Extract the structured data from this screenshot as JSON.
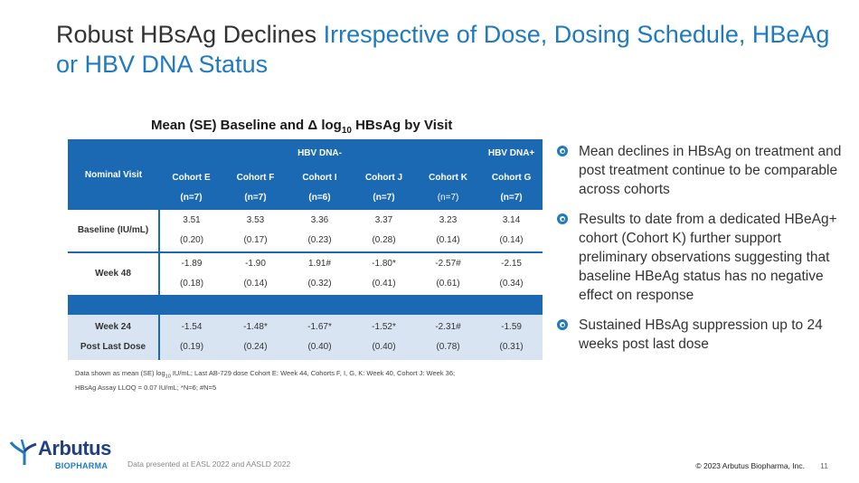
{
  "slide": {
    "title_main": "Robust HBsAg Declines ",
    "title_highlight": "Irrespective of Dose, Dosing Schedule, HBeAg or HBV DNA Status",
    "colors": {
      "accent": "#1f7ac2",
      "table_header": "#1b68b3",
      "highlight_row": "#d9e4f2",
      "logo_navy": "#1f3f8a"
    }
  },
  "table": {
    "title_pre": "Mean (SE) Baseline and Δ log",
    "title_sub": "10",
    "title_post": " HBsAg by Visit",
    "nominal_visit": "Nominal Visit",
    "group_neg": "HBV DNA-",
    "group_pos": "HBV DNA+",
    "cohorts": [
      {
        "name": "Cohort E",
        "n": "(n=7)"
      },
      {
        "name": "Cohort F",
        "n": "(n=7)"
      },
      {
        "name": "Cohort I",
        "n": "(n=6)"
      },
      {
        "name": "Cohort J",
        "n": "(n=7)"
      },
      {
        "name": "Cohort K",
        "n": "(n=7)"
      },
      {
        "name": "Cohort G",
        "n": "(n=7)"
      }
    ],
    "rows": [
      {
        "label": "Baseline (IU/mL)",
        "cells": [
          [
            "3.51",
            "(0.20)"
          ],
          [
            "3.53",
            "(0.17)"
          ],
          [
            "3.36",
            "(0.23)"
          ],
          [
            "3.37",
            "(0.28)"
          ],
          [
            "3.23",
            "(0.14)"
          ],
          [
            "3.14",
            "(0.14)"
          ]
        ]
      },
      {
        "label": "Week 48",
        "cells": [
          [
            "-1.89",
            "(0.18)"
          ],
          [
            "-1.90",
            "(0.14)"
          ],
          [
            "1.91#",
            "(0.32)"
          ],
          [
            "-1.80*",
            "(0.41)"
          ],
          [
            "-2.57#",
            "(0.61)"
          ],
          [
            "-2.15",
            "(0.34)"
          ]
        ]
      }
    ],
    "pld_row": {
      "label_line1": "Week 24",
      "label_line2": "Post Last Dose",
      "cells": [
        [
          "-1.54",
          "(0.19)"
        ],
        [
          "-1.48*",
          "(0.24)"
        ],
        [
          "-1.67*",
          "(0.40)"
        ],
        [
          "-1.52*",
          "(0.40)"
        ],
        [
          "-2.31#",
          "(0.78)"
        ],
        [
          "-1.59",
          "(0.31)"
        ]
      ]
    }
  },
  "footnote": {
    "line1_pre": "Data shown as mean (SE) log",
    "line1_sub": "10",
    "line1_post": " IU/mL; Last AB-729 dose Cohort E: Week 44, Cohorts F, I, G, K: Week 40, Cohort J: Week 36;",
    "line2": "HBsAg Assay LLOQ = 0.07 IU/mL; *N=6; #N=5"
  },
  "bullets": [
    "Mean declines in HBsAg on treatment and post treatment continue to be comparable across cohorts",
    "Results to date from a dedicated HBeAg+ cohort (Cohort K) further support preliminary observations suggesting that baseline HBeAg status has no negative effect on response",
    "Sustained HBsAg suppression up to 24 weeks post last dose"
  ],
  "footer": {
    "logo_main": "Arbutus",
    "logo_sub": "BIOPHARMA",
    "source": "Data presented at EASL 2022 and AASLD 2022",
    "copyright": "© 2023 Arbutus Biopharma, Inc.",
    "page": "11"
  }
}
